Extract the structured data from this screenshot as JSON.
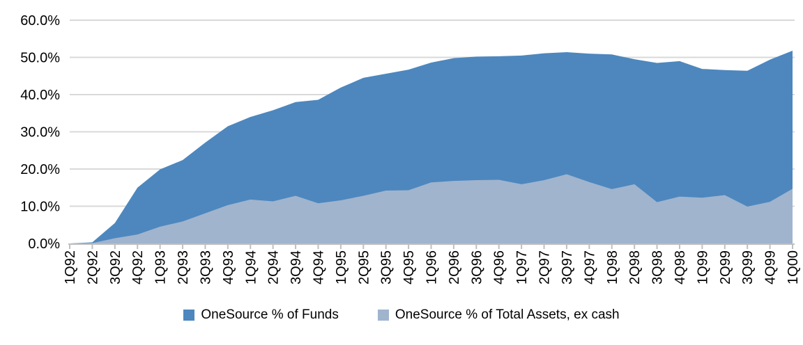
{
  "chart_data": {
    "type": "area",
    "title": "",
    "xlabel": "",
    "ylabel": "",
    "ylim": [
      0,
      60
    ],
    "y_tick_step": 10,
    "y_tick_labels": [
      "0.0%",
      "10.0%",
      "20.0%",
      "30.0%",
      "40.0%",
      "50.0%",
      "60.0%"
    ],
    "grid": true,
    "legend_position": "bottom",
    "stacked": false,
    "categories": [
      "1Q92",
      "2Q92",
      "3Q92",
      "4Q92",
      "1Q93",
      "2Q93",
      "3Q93",
      "4Q93",
      "1Q94",
      "2Q94",
      "3Q94",
      "4Q94",
      "1Q95",
      "2Q95",
      "3Q95",
      "4Q95",
      "1Q96",
      "2Q96",
      "3Q96",
      "4Q96",
      "1Q97",
      "2Q97",
      "3Q97",
      "4Q97",
      "1Q98",
      "2Q98",
      "3Q98",
      "4Q98",
      "1Q99",
      "2Q99",
      "3Q99",
      "4Q99",
      "1Q00"
    ],
    "series": [
      {
        "name": "OneSource % of Funds",
        "color": "#4D87BE",
        "values": [
          0,
          0.3,
          5.5,
          15.0,
          19.9,
          22.4,
          27.1,
          31.5,
          34.0,
          35.8,
          38.0,
          38.6,
          41.9,
          44.5,
          45.6,
          46.7,
          48.6,
          49.8,
          50.2,
          50.3,
          50.5,
          51.1,
          51.4,
          51.0,
          50.8,
          49.5,
          48.5,
          49.0,
          46.9,
          46.6,
          46.4,
          49.4,
          51.8
        ]
      },
      {
        "name": "OneSource % of Total Assets, ex cash",
        "color": "#A0B4CE",
        "values": [
          0,
          0.1,
          1.4,
          2.4,
          4.5,
          5.9,
          8.1,
          10.3,
          11.8,
          11.3,
          12.8,
          10.8,
          11.6,
          12.8,
          14.2,
          14.3,
          16.4,
          16.8,
          17.0,
          17.1,
          15.9,
          17.0,
          18.6,
          16.5,
          14.6,
          15.9,
          11.1,
          12.6,
          12.3,
          13.0,
          9.9,
          11.2,
          14.7
        ]
      }
    ],
    "colors": {
      "gridline": "#D9D9D9",
      "axis": "#BFBFBF",
      "text": "#000000",
      "background": "#FFFFFF"
    }
  }
}
